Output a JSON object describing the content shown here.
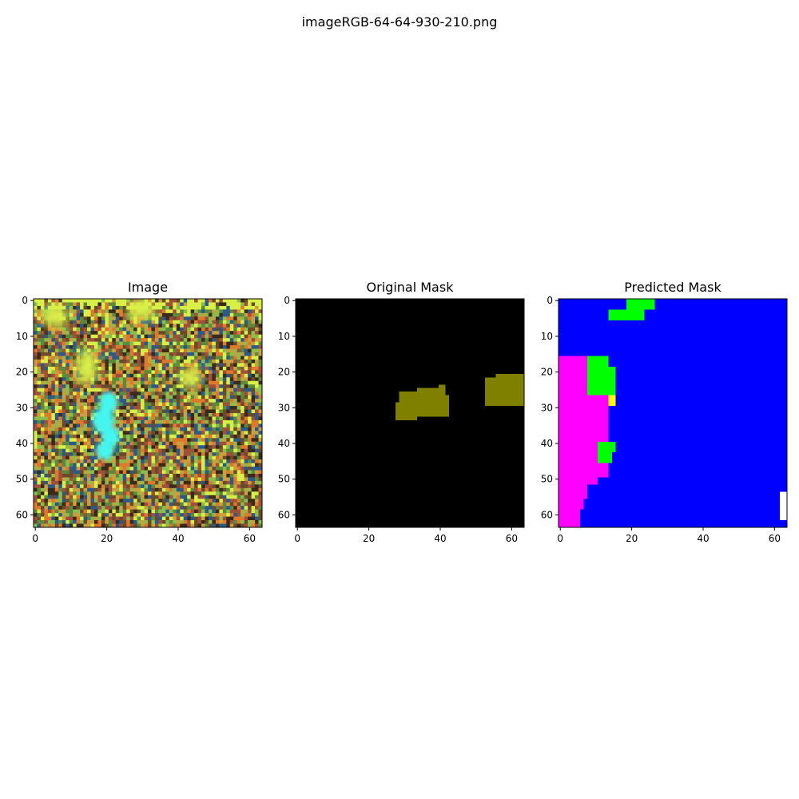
{
  "figure": {
    "suptitle": "imageRGB-64-64-930-210.png"
  },
  "chart_data": [
    {
      "type": "heatmap",
      "title": "Image",
      "xlim": [
        0,
        64
      ],
      "ylim": [
        64,
        0
      ],
      "xticks": [
        0,
        20,
        40,
        60
      ],
      "yticks": [
        0,
        10,
        20,
        30,
        40,
        50,
        60
      ],
      "content": "noisy RGB texture; bright cyan blob near x 18-24, y 27-44; yellow-green highlights near x 13-18, y 15-24",
      "colors": {
        "cyan": "#45f5f0",
        "yellow": "#d8ef48",
        "green": "#8cbc4c",
        "orange": "#e0782c",
        "dark": "#3a2a1c"
      }
    },
    {
      "type": "heatmap",
      "title": "Original Mask",
      "xlim": [
        0,
        64
      ],
      "ylim": [
        64,
        0
      ],
      "xticks": [
        0,
        20,
        40,
        60
      ],
      "yticks": [
        0,
        10,
        20,
        30,
        40,
        50,
        60
      ],
      "background": "#000000",
      "regions": [
        {
          "color": "#808000",
          "rects": [
            [
              28,
              29,
              33,
              34
            ],
            [
              29,
              26,
              34,
              34
            ],
            [
              34,
              25,
              38,
              33
            ],
            [
              38,
              25,
              40,
              33
            ],
            [
              40,
              24,
              42,
              33
            ],
            [
              42,
              27,
              43,
              33
            ]
          ]
        },
        {
          "color": "#808000",
          "rects": [
            [
              53,
              22,
              56,
              30
            ],
            [
              56,
              21,
              64,
              30
            ]
          ]
        }
      ]
    },
    {
      "type": "heatmap",
      "title": "Predicted Mask",
      "xlim": [
        0,
        64
      ],
      "ylim": [
        64,
        0
      ],
      "xticks": [
        0,
        20,
        40,
        60
      ],
      "yticks": [
        0,
        10,
        20,
        30,
        40,
        50,
        60
      ],
      "background": "#0000ff",
      "regions": [
        {
          "color": "#ff00ff",
          "rects": [
            [
              0,
              16,
              8,
              44
            ],
            [
              8,
              27,
              14,
              41
            ],
            [
              8,
              41,
              11,
              52
            ],
            [
              11,
              45,
              14,
              50
            ],
            [
              0,
              44,
              8,
              56
            ],
            [
              0,
              56,
              7,
              59
            ],
            [
              0,
              59,
              6,
              64
            ]
          ]
        },
        {
          "color": "#00ff00",
          "rects": [
            [
              8,
              16,
              14,
              27
            ],
            [
              14,
              19,
              16,
              27
            ],
            [
              11,
              40,
              15,
              46
            ],
            [
              15,
              40,
              16,
              43
            ],
            [
              19,
              0,
              27,
              3
            ],
            [
              14,
              3,
              24,
              6
            ]
          ]
        },
        {
          "color": "#ffff00",
          "rects": [
            [
              14,
              27,
              16,
              30
            ]
          ]
        },
        {
          "color": "#ffffff",
          "rects": [
            [
              62,
              54,
              64,
              62
            ]
          ]
        }
      ]
    }
  ]
}
